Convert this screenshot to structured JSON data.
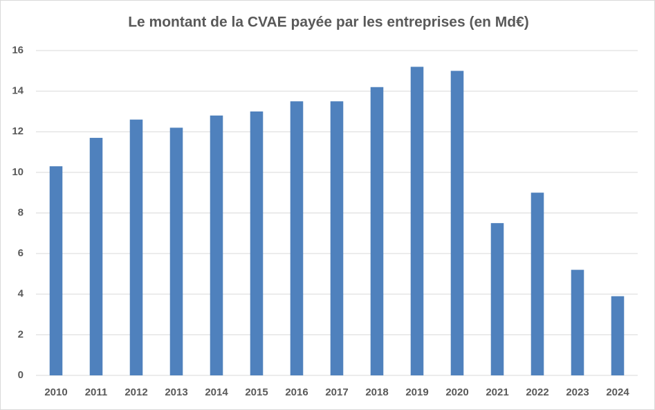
{
  "chart_data": {
    "type": "bar",
    "title": "Le montant de la CVAE payée par les entreprises (en Md€)",
    "categories": [
      "2010",
      "2011",
      "2012",
      "2013",
      "2014",
      "2015",
      "2016",
      "2017",
      "2018",
      "2019",
      "2020",
      "2021",
      "2022",
      "2023",
      "2024"
    ],
    "values": [
      10.3,
      11.7,
      12.6,
      12.2,
      12.8,
      13.0,
      13.5,
      13.5,
      14.2,
      15.2,
      15.0,
      7.5,
      9.0,
      5.2,
      3.9
    ],
    "color": "#4f81bd",
    "ylim": [
      0,
      16
    ],
    "yticks": [
      0,
      2,
      4,
      6,
      8,
      10,
      12,
      14,
      16
    ],
    "grid": true
  }
}
